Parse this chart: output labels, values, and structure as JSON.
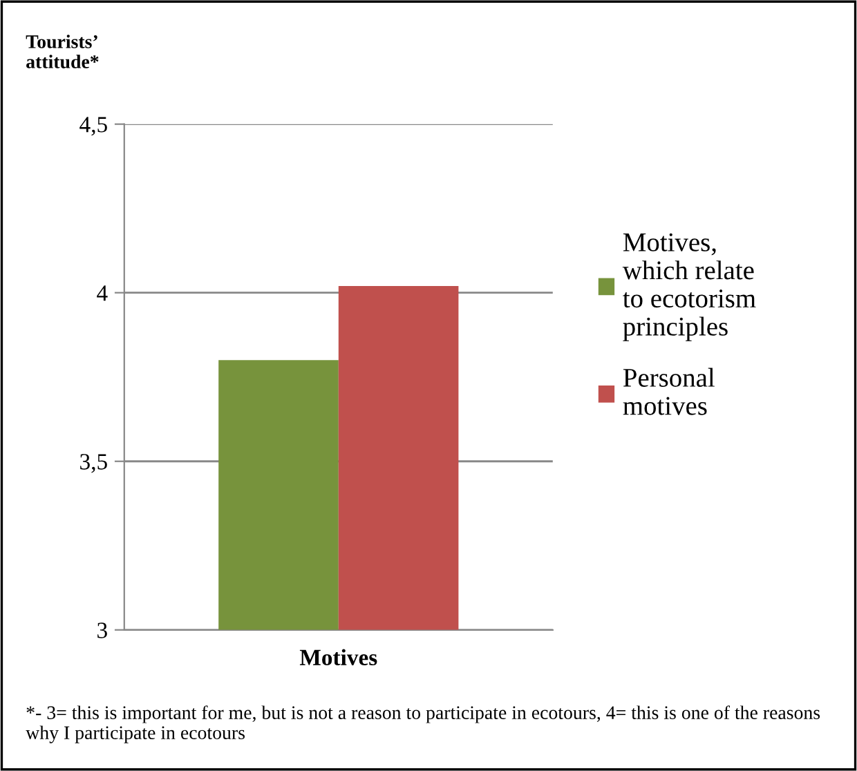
{
  "chart_data": {
    "type": "bar",
    "ylabel": "Tourists’ attitude*",
    "categories": [
      "Motives"
    ],
    "series": [
      {
        "name": "Motives, which relate to ecotorism principles",
        "color": "#77933c",
        "values": [
          3.8
        ]
      },
      {
        "name": "Personal motives",
        "color": "#c0504d",
        "values": [
          4.02
        ]
      }
    ],
    "ylim": [
      3,
      4.5
    ],
    "yticks": [
      3,
      {
        "value": 3.5,
        "label": "3,5"
      },
      4,
      {
        "value": 4.5,
        "label": "4,5"
      }
    ],
    "grid": "y",
    "legend": "right",
    "annotations": [
      "*- 3= this is important for me, but is not a reason to participate in ecotours, 4= this is one of the reasons why I participate in ecotours"
    ]
  }
}
